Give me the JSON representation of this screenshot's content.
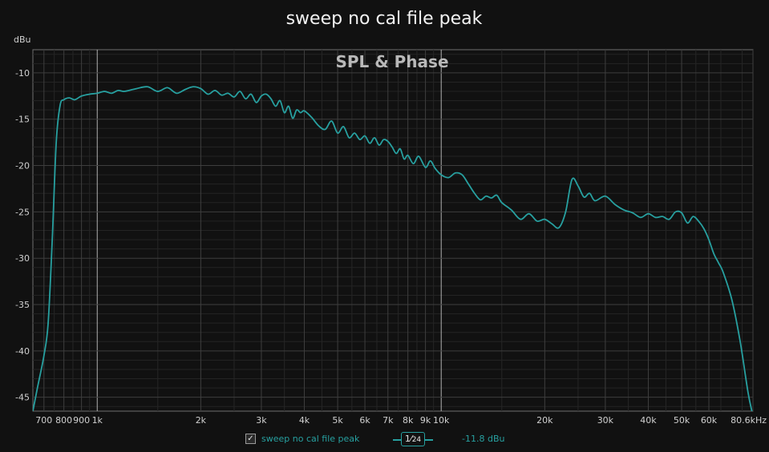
{
  "chart_data": {
    "type": "line",
    "title": "sweep no cal file peak",
    "plot_label": "SPL & Phase",
    "ylabel": "dBu",
    "xlabel": "",
    "x_scale": "log",
    "xlim": [
      650,
      80600
    ],
    "ylim": [
      -46.5,
      -7.5
    ],
    "x_ticks": [
      {
        "value": 700,
        "label": "700"
      },
      {
        "value": 800,
        "label": "800"
      },
      {
        "value": 900,
        "label": "900"
      },
      {
        "value": 1000,
        "label": "1k"
      },
      {
        "value": 2000,
        "label": "2k"
      },
      {
        "value": 3000,
        "label": "3k"
      },
      {
        "value": 4000,
        "label": "4k"
      },
      {
        "value": 5000,
        "label": "5k"
      },
      {
        "value": 6000,
        "label": "6k"
      },
      {
        "value": 7000,
        "label": "7k"
      },
      {
        "value": 8000,
        "label": "8k"
      },
      {
        "value": 9000,
        "label": "9k"
      },
      {
        "value": 10000,
        "label": "10k"
      },
      {
        "value": 20000,
        "label": "20k"
      },
      {
        "value": 30000,
        "label": "30k"
      },
      {
        "value": 40000,
        "label": "40k"
      },
      {
        "value": 50000,
        "label": "50k"
      },
      {
        "value": 60000,
        "label": "60k"
      },
      {
        "value": 80600,
        "label": "80.6kHz"
      }
    ],
    "y_ticks": [
      {
        "value": -10,
        "label": "-10"
      },
      {
        "value": -15,
        "label": "-15"
      },
      {
        "value": -20,
        "label": "-20"
      },
      {
        "value": -25,
        "label": "-25"
      },
      {
        "value": -30,
        "label": "-30"
      },
      {
        "value": -35,
        "label": "-35"
      },
      {
        "value": -40,
        "label": "-40"
      },
      {
        "value": -45,
        "label": "-45"
      }
    ],
    "grid": true,
    "series": [
      {
        "name": "sweep no cal file peak",
        "color": "#27a0a0",
        "x": [
          650,
          670,
          700,
          720,
          740,
          760,
          780,
          800,
          830,
          860,
          900,
          950,
          1000,
          1050,
          1100,
          1150,
          1200,
          1300,
          1400,
          1500,
          1600,
          1700,
          1800,
          1900,
          2000,
          2100,
          2200,
          2300,
          2400,
          2500,
          2600,
          2700,
          2800,
          2900,
          3000,
          3100,
          3200,
          3300,
          3400,
          3500,
          3600,
          3700,
          3800,
          3900,
          4000,
          4200,
          4400,
          4600,
          4800,
          5000,
          5200,
          5400,
          5600,
          5800,
          6000,
          6200,
          6400,
          6600,
          6800,
          7000,
          7200,
          7400,
          7600,
          7800,
          8000,
          8300,
          8600,
          9000,
          9300,
          9600,
          10000,
          10500,
          11000,
          11500,
          12000,
          12500,
          13000,
          13500,
          14000,
          14500,
          15000,
          16000,
          17000,
          18000,
          19000,
          20000,
          21000,
          22000,
          23000,
          24000,
          25000,
          26000,
          27000,
          28000,
          30000,
          32000,
          34000,
          36000,
          38000,
          40000,
          42000,
          44000,
          46000,
          48000,
          50000,
          52000,
          54000,
          56000,
          58000,
          60000,
          62000,
          64000,
          66000,
          70000,
          74000,
          78000,
          80600
        ],
        "y": [
          -46.5,
          -44.0,
          -40.5,
          -37.0,
          -28.0,
          -17.5,
          -13.5,
          -12.9,
          -12.7,
          -12.9,
          -12.5,
          -12.3,
          -12.2,
          -12.0,
          -12.2,
          -11.9,
          -12.0,
          -11.7,
          -11.5,
          -12.0,
          -11.6,
          -12.2,
          -11.8,
          -11.5,
          -11.7,
          -12.3,
          -11.9,
          -12.4,
          -12.2,
          -12.6,
          -12.0,
          -12.8,
          -12.3,
          -13.2,
          -12.5,
          -12.3,
          -12.8,
          -13.6,
          -13.0,
          -14.3,
          -13.6,
          -14.9,
          -14.0,
          -14.3,
          -14.1,
          -14.8,
          -15.7,
          -16.1,
          -15.2,
          -16.5,
          -15.8,
          -17.0,
          -16.5,
          -17.2,
          -16.8,
          -17.6,
          -17.0,
          -17.8,
          -17.2,
          -17.4,
          -18.0,
          -18.7,
          -18.2,
          -19.3,
          -18.9,
          -19.8,
          -19.0,
          -20.2,
          -19.5,
          -20.3,
          -21.0,
          -21.3,
          -20.8,
          -21.0,
          -22.0,
          -23.0,
          -23.7,
          -23.3,
          -23.5,
          -23.2,
          -24.0,
          -24.8,
          -25.8,
          -25.2,
          -26.0,
          -25.8,
          -26.3,
          -26.7,
          -25.0,
          -21.5,
          -22.2,
          -23.4,
          -23.0,
          -23.8,
          -23.3,
          -24.2,
          -24.8,
          -25.1,
          -25.6,
          -25.2,
          -25.6,
          -25.5,
          -25.8,
          -25.0,
          -25.1,
          -26.2,
          -25.5,
          -26.0,
          -26.8,
          -28.0,
          -29.5,
          -30.5,
          -31.5,
          -34.5,
          -39.0,
          -44.5,
          -47.0
        ]
      }
    ]
  },
  "legend": {
    "checkbox_mark": "✓",
    "series_name": "sweep no cal file peak",
    "smoothing_num": "1",
    "smoothing_den": "24",
    "cursor_value": "-11.8 dBu"
  }
}
